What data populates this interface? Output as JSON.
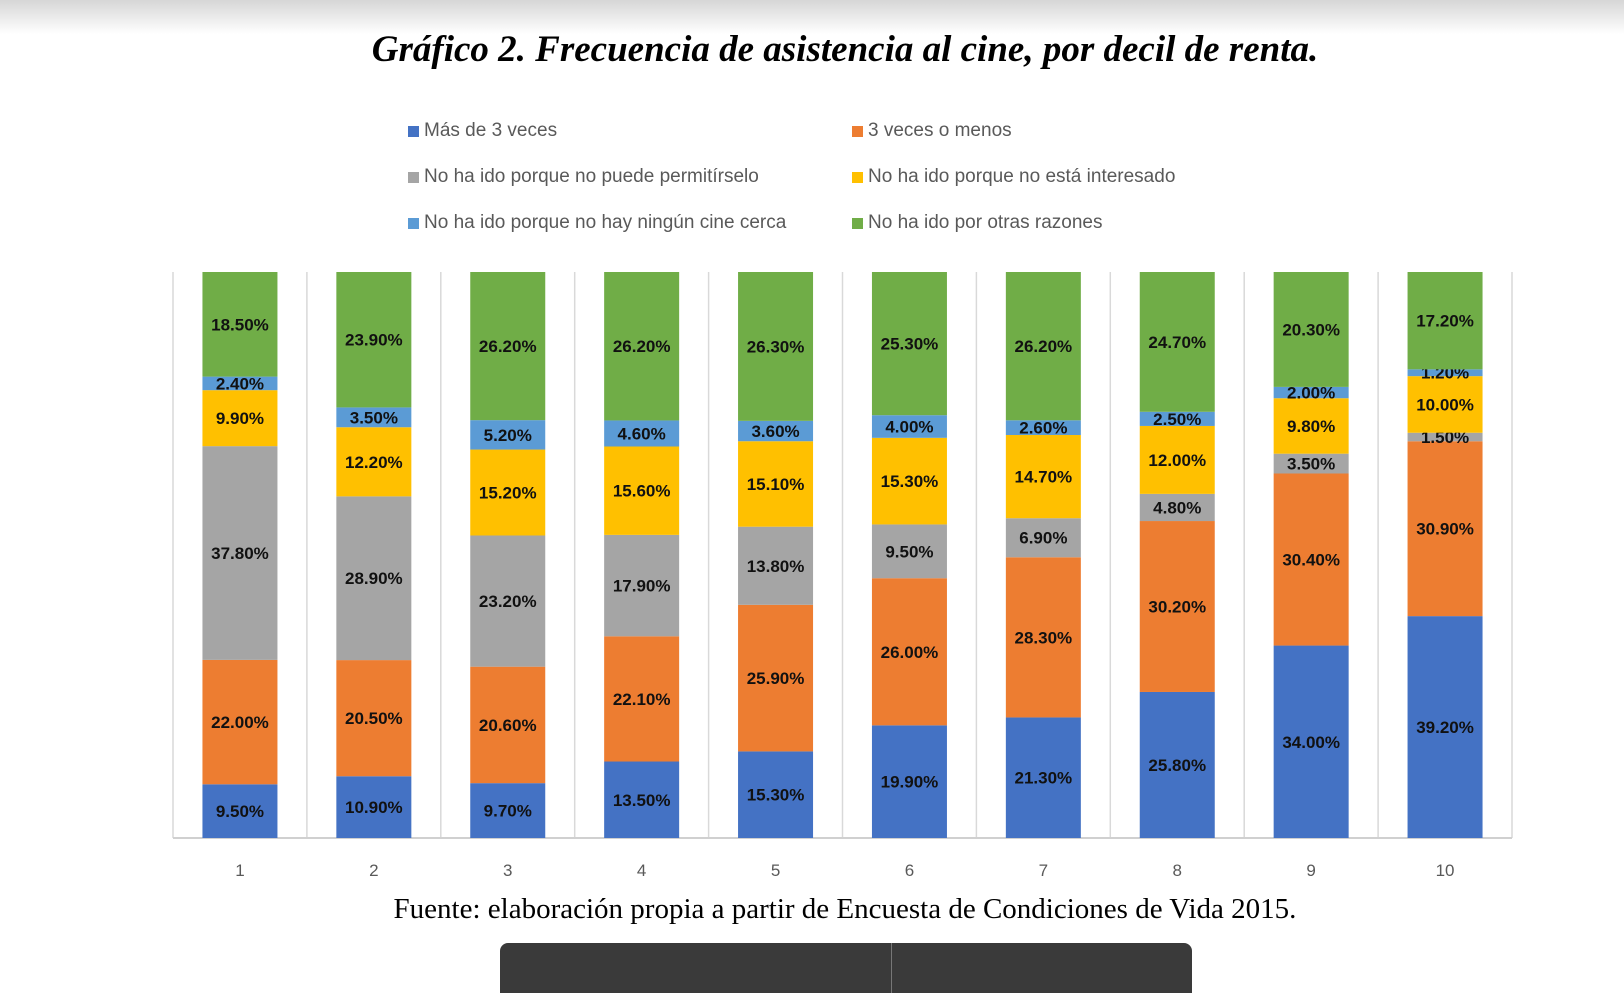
{
  "chart_data": {
    "type": "bar",
    "stacked": true,
    "normalized_percent": true,
    "title": "Gráfico 2. Frecuencia de asistencia al cine, por decil de renta.",
    "source": "Fuente: elaboración propia a partir de Encuesta de Condiciones de Vida 2015.",
    "xlabel": "",
    "ylabel": "",
    "ylim": [
      0,
      100
    ],
    "grid": "vertical separators",
    "legend_placement": "top",
    "categories": [
      "1",
      "2",
      "3",
      "4",
      "5",
      "6",
      "7",
      "8",
      "9",
      "10"
    ],
    "series": [
      {
        "name": "Más de 3 veces",
        "color": "#4472C4",
        "values": [
          9.5,
          10.9,
          9.7,
          13.5,
          15.3,
          19.9,
          21.3,
          25.8,
          34.0,
          39.2
        ],
        "labels": [
          "9.50%",
          "10.90%",
          "9.70%",
          "13.50%",
          "15.30%",
          "19.90%",
          "21.30%",
          "25.80%",
          "34.00%",
          "39.20%"
        ]
      },
      {
        "name": "3 veces o menos",
        "color": "#ED7D31",
        "values": [
          22.0,
          20.5,
          20.6,
          22.1,
          25.9,
          26.0,
          28.3,
          30.2,
          30.4,
          30.9
        ],
        "labels": [
          "22.00%",
          "20.50%",
          "20.60%",
          "22.10%",
          "25.90%",
          "26.00%",
          "28.30%",
          "30.20%",
          "30.40%",
          "30.90%"
        ]
      },
      {
        "name": "No ha ido porque no puede permitírselo",
        "color": "#A5A5A5",
        "values": [
          37.8,
          28.9,
          23.2,
          17.9,
          13.8,
          9.5,
          6.9,
          4.8,
          3.5,
          1.5
        ],
        "labels": [
          "37.80%",
          "28.90%",
          "23.20%",
          "17.90%",
          "13.80%",
          "9.50%",
          "6.90%",
          "4.80%",
          "3.50%",
          "1.50%"
        ]
      },
      {
        "name": "No ha ido porque no está interesado",
        "color": "#FFC000",
        "values": [
          9.9,
          12.2,
          15.2,
          15.6,
          15.1,
          15.3,
          14.7,
          12.0,
          9.8,
          10.0
        ],
        "labels": [
          "9.90%",
          "12.20%",
          "15.20%",
          "15.60%",
          "15.10%",
          "15.30%",
          "14.70%",
          "12.00%",
          "9.80%",
          "10.00%"
        ]
      },
      {
        "name": "No ha ido porque no hay ningún cine cerca",
        "color": "#5B9BD5",
        "values": [
          2.4,
          3.5,
          5.2,
          4.6,
          3.6,
          4.0,
          2.6,
          2.5,
          2.0,
          1.2
        ],
        "labels": [
          "2.40%",
          "3.50%",
          "5.20%",
          "4.60%",
          "3.60%",
          "4.00%",
          "2.60%",
          "2.50%",
          "2.00%",
          "1.20%"
        ]
      },
      {
        "name": "No ha ido por otras razones",
        "color": "#70AD47",
        "values": [
          18.5,
          23.9,
          26.2,
          26.2,
          26.3,
          25.3,
          26.2,
          24.7,
          20.3,
          17.2
        ],
        "labels": [
          "18.50%",
          "23.90%",
          "26.20%",
          "26.20%",
          "26.30%",
          "25.30%",
          "26.20%",
          "24.70%",
          "20.30%",
          "17.20%"
        ]
      }
    ]
  }
}
